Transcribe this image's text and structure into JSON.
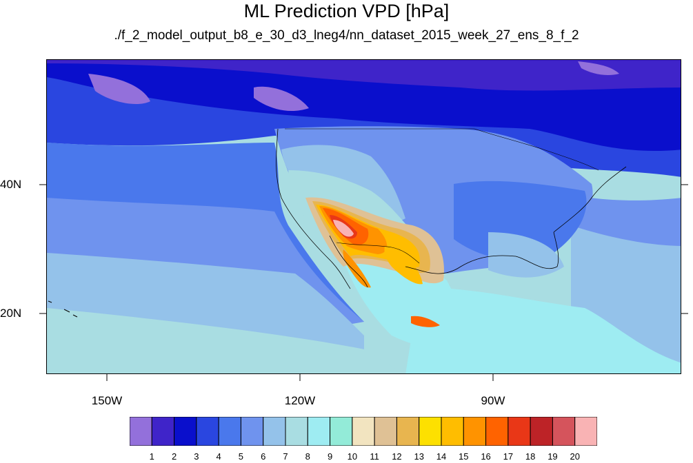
{
  "title": "ML Prediction VPD [hPa]",
  "subtitle": "./f_2_model_output_b8_e_30_d3_lneg4/nn_dataset_2015_week_27_ens_8_f_2",
  "lat_labels": [
    "40N",
    "20N"
  ],
  "lon_labels": [
    "150W",
    "120W",
    "90W"
  ],
  "colorbar": {
    "labels": [
      "1",
      "2",
      "3",
      "4",
      "5",
      "6",
      "7",
      "8",
      "9",
      "10",
      "11",
      "12",
      "13",
      "14",
      "15",
      "16",
      "17",
      "18",
      "19",
      "20"
    ],
    "colors": [
      "#9370db",
      "#3f24c9",
      "#0a0fcc",
      "#2a46e0",
      "#4a78ec",
      "#6f93ee",
      "#94c2ea",
      "#a9dde2",
      "#9eecf2",
      "#93ebd8",
      "#f2e4c0",
      "#dfc195",
      "#e8b54f",
      "#fde000",
      "#ffbd00",
      "#ff9300",
      "#ff6300",
      "#e93717",
      "#bd2327",
      "#d5545c",
      "#f9b3b4"
    ]
  }
}
